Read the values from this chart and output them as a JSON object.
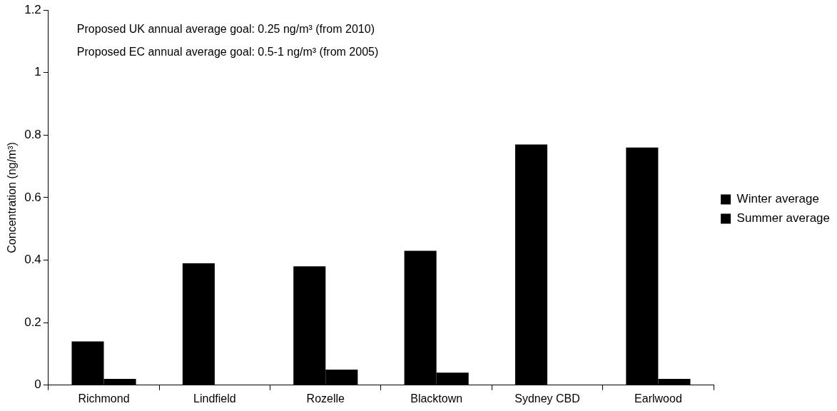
{
  "chart_data": {
    "type": "bar",
    "ylabel": "Concentration (ng/m³)",
    "categories": [
      "Richmond",
      "Lindfield",
      "Rozelle",
      "Blacktown",
      "Sydney CBD",
      "Earlwood"
    ],
    "series": [
      {
        "name": "Winter average",
        "color": "#000000",
        "values": [
          0.14,
          0.39,
          0.38,
          0.43,
          0.77,
          0.76
        ]
      },
      {
        "name": "Summer average",
        "color": "#000000",
        "values": [
          0.02,
          0,
          0.05,
          0.04,
          0,
          0.02
        ]
      }
    ],
    "ylim": [
      0,
      1.2
    ],
    "yticks": [
      0,
      0.2,
      0.4,
      0.6,
      0.8,
      1,
      1.2
    ],
    "grid": false,
    "legend": "right",
    "annotations": [
      "Proposed UK annual average goal: 0.25 ng/m³ (from 2010)",
      "Proposed EC annual average goal: 0.5-1 ng/m³ (from 2005)"
    ]
  }
}
